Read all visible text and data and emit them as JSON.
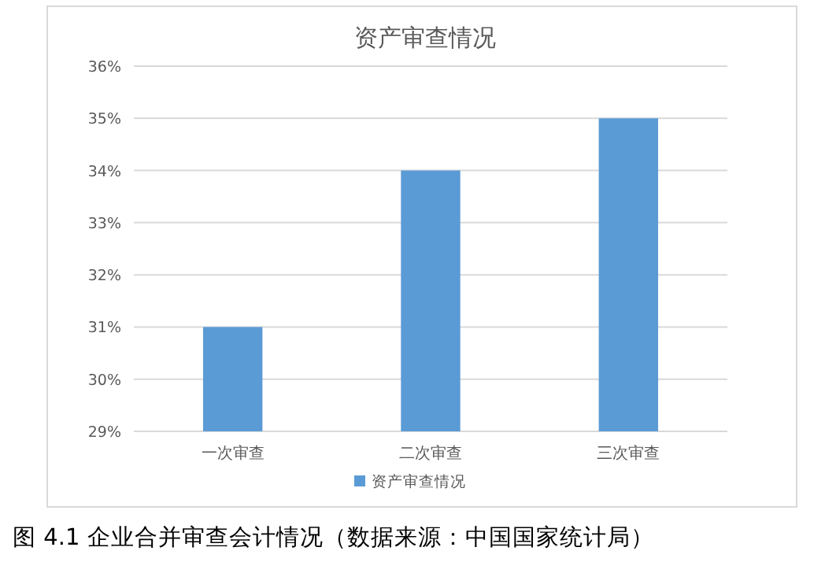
{
  "chart_data": {
    "type": "bar",
    "title": "资产审查情况",
    "categories": [
      "一次审查",
      "二次审查",
      "三次审查"
    ],
    "series": [
      {
        "name": "资产审查情况",
        "color": "#5b9bd5",
        "values": [
          31,
          34,
          35
        ]
      }
    ],
    "ylim": [
      29,
      36
    ],
    "yticks": [
      {
        "value": 29,
        "label": "29%"
      },
      {
        "value": 30,
        "label": "30%"
      },
      {
        "value": 31,
        "label": "31%"
      },
      {
        "value": 32,
        "label": "32%"
      },
      {
        "value": 33,
        "label": "33%"
      },
      {
        "value": 34,
        "label": "34%"
      },
      {
        "value": 35,
        "label": "35%"
      },
      {
        "value": 36,
        "label": "36%"
      }
    ],
    "grid": "y",
    "legend": "bottom",
    "annotations": [
      "图 4.1 企业合并审查会计情况（数据来源：中国国家统计局）"
    ]
  }
}
